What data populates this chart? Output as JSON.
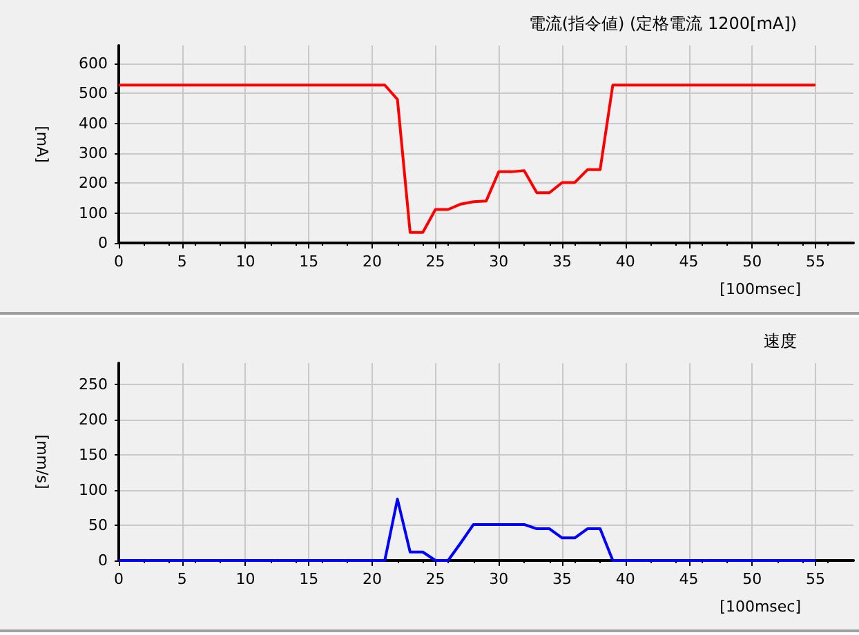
{
  "chart_data": [
    {
      "type": "line",
      "title": "電流(指令値) (定格電流 1200[mA])",
      "xlabel": "[100msec]",
      "ylabel": "[mA]",
      "grid": true,
      "marker": "none",
      "line_style": "solid",
      "xlim": [
        0,
        58
      ],
      "xticks": [
        0,
        5,
        10,
        15,
        20,
        25,
        30,
        35,
        40,
        45,
        50,
        55
      ],
      "ylim": [
        0,
        660
      ],
      "yticks": [
        0,
        100,
        200,
        300,
        400,
        500,
        600
      ],
      "series": [
        {
          "color": "#ff0000",
          "x": [
            0,
            21,
            22,
            23,
            24,
            25,
            26,
            27,
            28,
            29,
            30,
            31,
            32,
            33,
            34,
            35,
            36,
            37,
            38,
            39,
            55
          ],
          "values": [
            528,
            528,
            480,
            35,
            35,
            112,
            112,
            130,
            138,
            140,
            238,
            238,
            242,
            168,
            168,
            202,
            202,
            245,
            245,
            528,
            528
          ]
        }
      ]
    },
    {
      "type": "line",
      "title": "速度",
      "xlabel": "[100msec]",
      "ylabel": "[mm/s]",
      "grid": true,
      "marker": "none",
      "line_style": "solid",
      "xlim": [
        0,
        58
      ],
      "xticks": [
        0,
        5,
        10,
        15,
        20,
        25,
        30,
        35,
        40,
        45,
        50,
        55
      ],
      "ylim": [
        0,
        280
      ],
      "yticks": [
        0,
        50,
        100,
        150,
        200,
        250
      ],
      "series": [
        {
          "color": "#0000ff",
          "x": [
            0,
            21,
            22,
            23,
            24,
            25,
            26,
            27,
            28,
            29,
            30,
            31,
            32,
            33,
            34,
            35,
            36,
            37,
            38,
            39,
            55
          ],
          "values": [
            0,
            0,
            87,
            12,
            12,
            0,
            0,
            25,
            51,
            51,
            51,
            51,
            51,
            45,
            45,
            32,
            32,
            45,
            45,
            0,
            0
          ]
        }
      ]
    }
  ]
}
